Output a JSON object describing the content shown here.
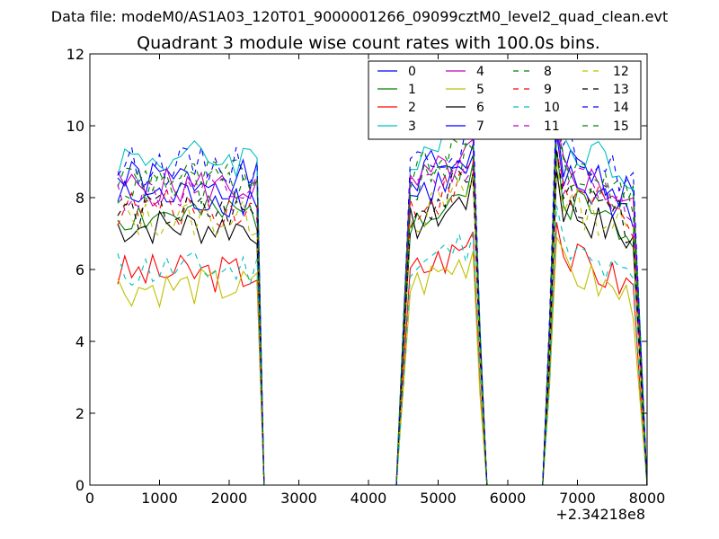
{
  "suptitle": "Data file: modeM0/AS1A03_120T01_9000001266_09099cztM0_level2_quad_clean.evt",
  "chart_data": {
    "type": "line",
    "title": "Quadrant 3 module wise count rates with 100.0s bins.",
    "xlabel": "",
    "ylabel": "",
    "xlim": [
      0,
      8000
    ],
    "ylim": [
      0,
      12
    ],
    "x_offset_label": "+2.34218e8",
    "xticks": [
      0,
      1000,
      2000,
      3000,
      4000,
      5000,
      6000,
      7000,
      8000
    ],
    "yticks": [
      0,
      2,
      4,
      6,
      8,
      10,
      12
    ],
    "legend_position": "top-right",
    "series": [
      {
        "name": "0",
        "color": "#0000ff",
        "dash": "solid",
        "level": 8.5,
        "seed": 1
      },
      {
        "name": "1",
        "color": "#008000",
        "dash": "solid",
        "level": 7.5,
        "seed": 2
      },
      {
        "name": "2",
        "color": "#ff0000",
        "dash": "solid",
        "level": 5.9,
        "seed": 3
      },
      {
        "name": "3",
        "color": "#00bfbf",
        "dash": "solid",
        "level": 9.1,
        "seed": 4
      },
      {
        "name": "4",
        "color": "#bf00bf",
        "dash": "solid",
        "level": 8.3,
        "seed": 5
      },
      {
        "name": "5",
        "color": "#bfbf00",
        "dash": "solid",
        "level": 5.5,
        "seed": 6
      },
      {
        "name": "6",
        "color": "#000000",
        "dash": "solid",
        "level": 7.2,
        "seed": 7
      },
      {
        "name": "7",
        "color": "#0000ff",
        "dash": "solid",
        "level": 8.0,
        "seed": 8
      },
      {
        "name": "8",
        "color": "#008000",
        "dash": "dashed",
        "level": 8.6,
        "seed": 9
      },
      {
        "name": "9",
        "color": "#ff0000",
        "dash": "dashed",
        "level": 7.7,
        "seed": 10
      },
      {
        "name": "10",
        "color": "#00bfbf",
        "dash": "dashed",
        "level": 6.0,
        "seed": 11
      },
      {
        "name": "11",
        "color": "#bf00bf",
        "dash": "dashed",
        "level": 8.1,
        "seed": 12
      },
      {
        "name": "12",
        "color": "#bfbf00",
        "dash": "dashed",
        "level": 7.4,
        "seed": 13
      },
      {
        "name": "13",
        "color": "#000000",
        "dash": "dashed",
        "level": 7.6,
        "seed": 14
      },
      {
        "name": "14",
        "color": "#0000ff",
        "dash": "dashed",
        "level": 8.9,
        "seed": 15
      },
      {
        "name": "15",
        "color": "#008000",
        "dash": "dashed",
        "level": 8.3,
        "seed": 16
      }
    ],
    "time_bins": {
      "start": 400,
      "end": 8000,
      "step": 100
    },
    "active_windows": [
      {
        "start": 400,
        "end": 2400,
        "ramp_down_end": 2500
      },
      {
        "start": 4600,
        "end": 5500,
        "ramp_up_start": 4400,
        "ramp_down_end": 5700
      },
      {
        "start": 6700,
        "end": 7800,
        "ramp_up_start": 6500,
        "ramp_down_end": 8000
      }
    ]
  }
}
